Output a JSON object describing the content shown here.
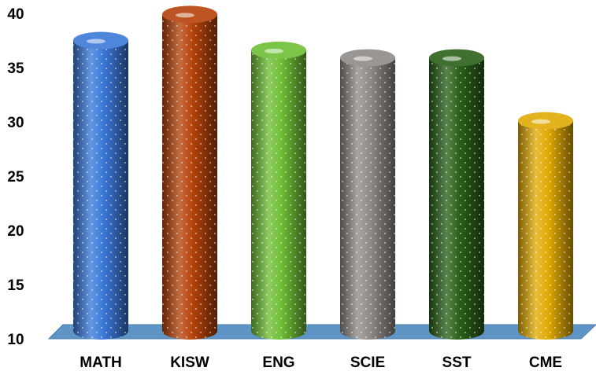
{
  "chart_data": {
    "type": "bar",
    "categories": [
      "MATH",
      "KISW",
      "ENG",
      "SCIE",
      "SST",
      "CME"
    ],
    "values": [
      37.5,
      39.9,
      36.6,
      35.9,
      35.9,
      30.1
    ],
    "colors": [
      "#3a78d8",
      "#b5420a",
      "#6fbe35",
      "#8f8a87",
      "#2b6018",
      "#e0aa05"
    ],
    "ylim": [
      10,
      40
    ],
    "yticks": [
      10,
      15,
      20,
      25,
      30,
      35,
      40
    ],
    "floor_color": "#5f94c7",
    "grid": false,
    "legend": "none"
  }
}
